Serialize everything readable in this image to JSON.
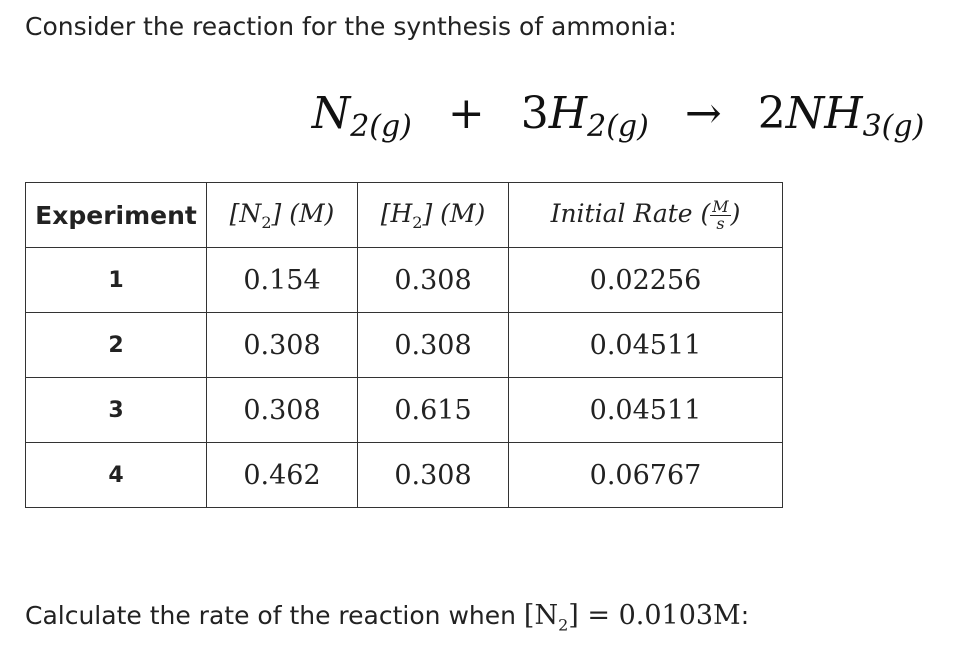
{
  "intro": "Consider the reaction for the synthesis of ammonia:",
  "equation": {
    "reactants": [
      {
        "coef": "",
        "species": "N",
        "sub": "2(g)"
      },
      {
        "coef": "3",
        "species": "H",
        "sub": "2(g)"
      }
    ],
    "plus": "+",
    "arrow": "→",
    "products": [
      {
        "coef": "2",
        "species": "NH",
        "sub": "3(g)"
      }
    ]
  },
  "table": {
    "headers": [
      {
        "text": "Experiment"
      },
      {
        "base": "[N",
        "sub": "2",
        "rest": "] (M)"
      },
      {
        "base": "[H",
        "sub": "2",
        "rest": "] (M)"
      },
      {
        "label": "Initial Rate (",
        "num": "M",
        "den": "s",
        "close": ")"
      }
    ],
    "rows": [
      [
        "1",
        "0.154",
        "0.308",
        "0.02256"
      ],
      [
        "2",
        "0.308",
        "0.308",
        "0.04511"
      ],
      [
        "3",
        "0.308",
        "0.615",
        "0.04511"
      ],
      [
        "4",
        "0.462",
        "0.308",
        "0.06767"
      ]
    ]
  },
  "question": {
    "text": "Calculate the rate of the reaction when ",
    "base": "[N",
    "sub": "2",
    "rest": "] = 0.0103M",
    "end": ":"
  }
}
